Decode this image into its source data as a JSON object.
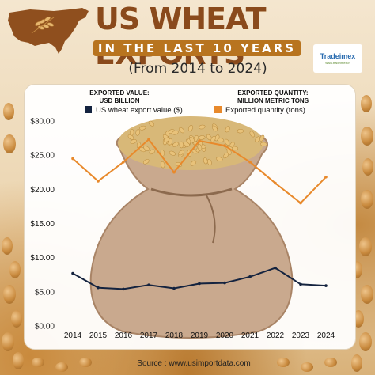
{
  "header": {
    "title": "US WHEAT EXPORTS",
    "subtitle": "IN THE LAST 10 YEARS",
    "range": "(From 2014 to 2024)",
    "logo_text": "Tradeimex",
    "logo_tagline": "www.tradeimex.in"
  },
  "source": "Source : www.usimportdata.com",
  "colors": {
    "value_series": "#14233f",
    "quantity_series": "#e8892b",
    "title": "#8a4a1c",
    "band": "#b8741f"
  },
  "chart_data": {
    "type": "line",
    "x": [
      "2014",
      "2015",
      "2016",
      "2017",
      "2018",
      "2019",
      "2020",
      "2021",
      "2022",
      "2023",
      "2024"
    ],
    "left_axis_title": [
      "EXPORTED VALUE:",
      "USD BILLION"
    ],
    "right_axis_title": [
      "EXPORTED QUANTITY:",
      "MILLION METRIC TONS"
    ],
    "ylim": [
      0,
      30
    ],
    "yticks": [
      "$0.00",
      "$5.00",
      "$10.00",
      "$15.00",
      "$20.00",
      "$25.00",
      "$30.00"
    ],
    "grid": false,
    "legend_position": "top",
    "series": [
      {
        "name": "US wheat export value ($)",
        "axis": "left",
        "values": [
          7.7,
          5.6,
          5.4,
          6.0,
          5.5,
          6.2,
          6.3,
          7.2,
          8.5,
          6.1,
          5.9
        ]
      },
      {
        "name": "Exported quantity (tons)",
        "axis": "left",
        "values": [
          24.5,
          21.2,
          24.0,
          27.3,
          22.5,
          27.1,
          26.4,
          24.0,
          20.9,
          18.0,
          21.8
        ]
      }
    ]
  }
}
